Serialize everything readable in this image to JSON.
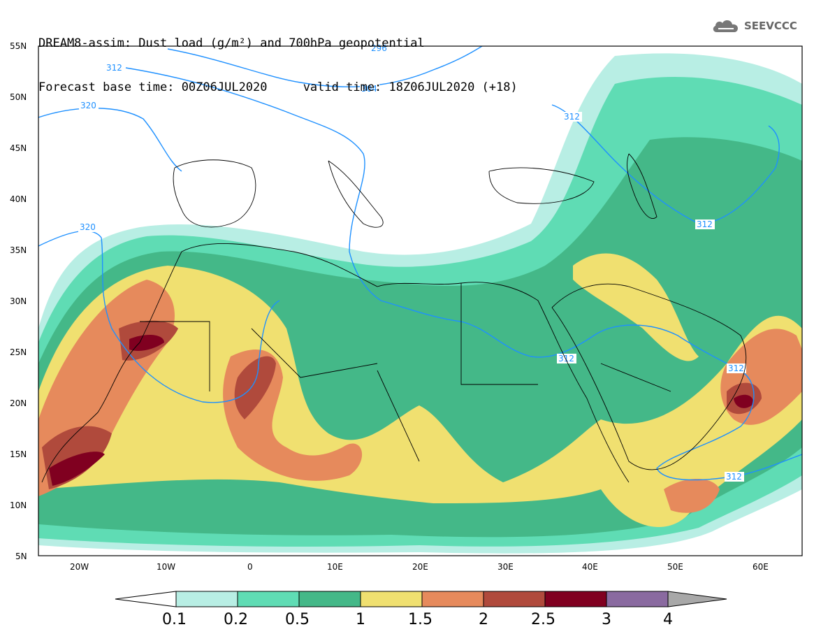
{
  "header": {
    "line1": "DREAM8-assim: Dust load (g/m²) and 700hPa geopotential",
    "line2": "Forecast base time: 00Z06JUL2020     valid time: 18Z06JUL2020 (+18)"
  },
  "logo": {
    "text": "SEEVCCC",
    "icon": "cloud-icon"
  },
  "map": {
    "lat_ticks": [
      "55N",
      "50N",
      "45N",
      "40N",
      "35N",
      "30N",
      "25N",
      "20N",
      "15N",
      "10N",
      "5N"
    ],
    "lon_ticks": [
      "20W",
      "10W",
      "0",
      "10E",
      "20E",
      "30E",
      "40E",
      "50E",
      "60E"
    ],
    "lat_range": [
      5,
      55
    ],
    "lon_range": [
      -25,
      65
    ],
    "geopotential_color": "#1e90ff",
    "contour_labels": [
      "296",
      "304",
      "312",
      "320",
      "312",
      "320",
      "312",
      "312",
      "312",
      "312"
    ]
  },
  "colorbar": {
    "colors": [
      "#b8eee4",
      "#5fdcb4",
      "#44b888",
      "#f0e070",
      "#e68a5c",
      "#b04a3c",
      "#800020",
      "#8a6aa0"
    ],
    "labels": [
      "0.1",
      "0.2",
      "0.5",
      "1",
      "1.5",
      "2",
      "2.5",
      "3",
      "4"
    ],
    "under_color": "#ffffff",
    "over_color": "#a8a8a8"
  }
}
